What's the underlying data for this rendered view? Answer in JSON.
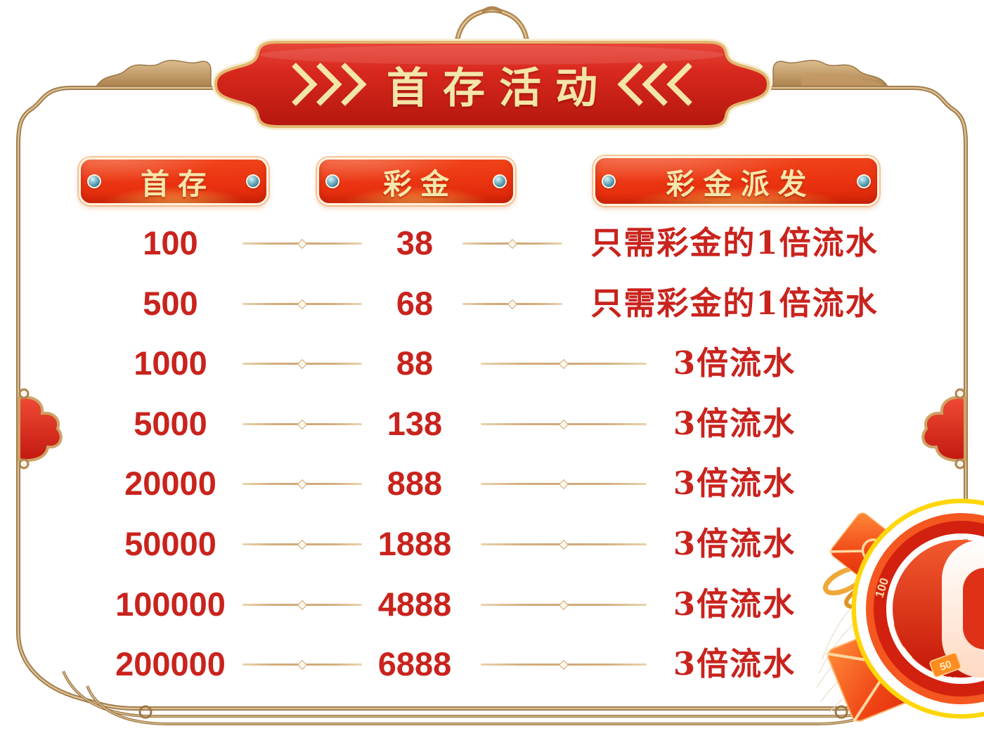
{
  "banner": {
    "title": "首存活动",
    "left_chevrons": ">>>",
    "right_chevrons": "<<<"
  },
  "table": {
    "headers": [
      {
        "label": "首存"
      },
      {
        "label": "彩金"
      },
      {
        "label": "彩金派发"
      }
    ],
    "rows": [
      {
        "deposit": "100",
        "bonus": "38",
        "payout": "只需彩金的1倍流水"
      },
      {
        "deposit": "500",
        "bonus": "68",
        "payout": "只需彩金的1倍流水"
      },
      {
        "deposit": "1000",
        "bonus": "88",
        "payout": "3倍流水"
      },
      {
        "deposit": "5000",
        "bonus": "138",
        "payout": "3倍流水"
      },
      {
        "deposit": "20000",
        "bonus": "888",
        "payout": "3倍流水"
      },
      {
        "deposit": "50000",
        "bonus": "1888",
        "payout": "3倍流水"
      },
      {
        "deposit": "100000",
        "bonus": "4888",
        "payout": "3倍流水"
      },
      {
        "deposit": "200000",
        "bonus": "6888",
        "payout": "3倍流水"
      }
    ]
  },
  "decor": {
    "chip_ring_label": "100",
    "chip_tag_label": "50"
  },
  "colors": {
    "text_red": "#c9231d",
    "banner_red": "#d6251c",
    "pill_orange": "#ea3311",
    "gold_frame": "#b08550",
    "line_tan": "#d3ae7f",
    "cream": "#f4e5a9",
    "rivet_blue": "#4e93aa"
  }
}
